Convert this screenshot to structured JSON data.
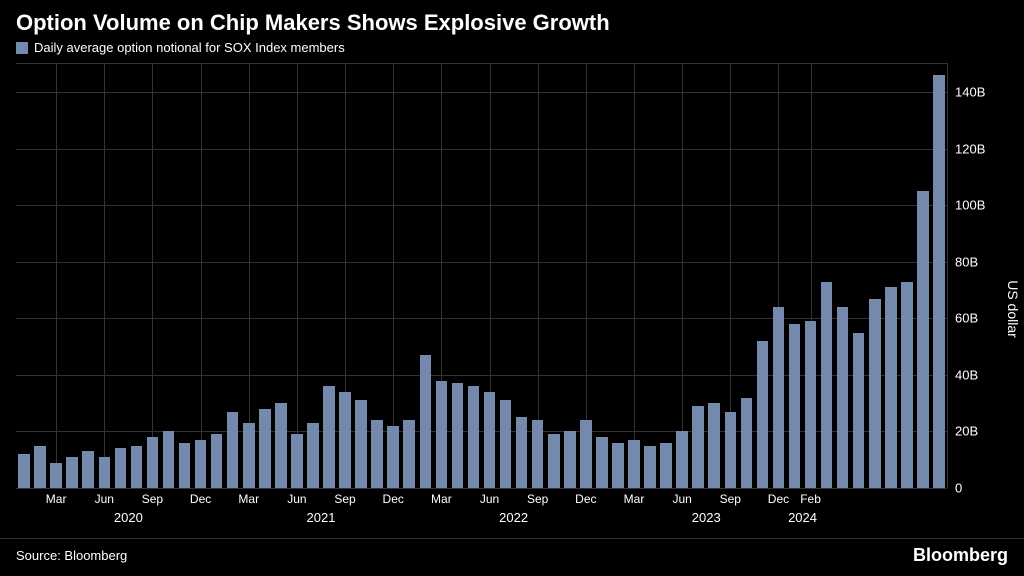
{
  "title": "Option Volume on Chip Makers Shows Explosive Growth",
  "legend": {
    "swatch_color": "#7489ab",
    "label": "Daily average option notional for SOX Index members"
  },
  "chart": {
    "type": "bar",
    "background_color": "#000000",
    "grid_color": "#333333",
    "bar_color": "#7489ab",
    "bar_width_ratio": 0.72,
    "y_axis": {
      "title": "US dollar",
      "min": 0,
      "max": 150,
      "ticks": [
        0,
        20,
        40,
        60,
        80,
        100,
        120,
        140
      ],
      "tick_labels": [
        "0",
        "20B",
        "40B",
        "60B",
        "80B",
        "100B",
        "120B",
        "140B"
      ],
      "label_color": "#ffffff",
      "label_fontsize": 13
    },
    "x_axis": {
      "month_ticks": [
        {
          "index": 2,
          "label": "Mar"
        },
        {
          "index": 5,
          "label": "Jun"
        },
        {
          "index": 8,
          "label": "Sep"
        },
        {
          "index": 11,
          "label": "Dec"
        },
        {
          "index": 14,
          "label": "Mar"
        },
        {
          "index": 17,
          "label": "Jun"
        },
        {
          "index": 20,
          "label": "Sep"
        },
        {
          "index": 23,
          "label": "Dec"
        },
        {
          "index": 26,
          "label": "Mar"
        },
        {
          "index": 29,
          "label": "Jun"
        },
        {
          "index": 32,
          "label": "Sep"
        },
        {
          "index": 35,
          "label": "Dec"
        },
        {
          "index": 38,
          "label": "Mar"
        },
        {
          "index": 41,
          "label": "Jun"
        },
        {
          "index": 44,
          "label": "Sep"
        },
        {
          "index": 47,
          "label": "Dec"
        },
        {
          "index": 49,
          "label": "Feb"
        }
      ],
      "year_ticks": [
        {
          "index": 6.5,
          "label": "2020"
        },
        {
          "index": 18.5,
          "label": "2021"
        },
        {
          "index": 30.5,
          "label": "2022"
        },
        {
          "index": 42.5,
          "label": "2023"
        },
        {
          "index": 48.5,
          "label": "2024"
        }
      ],
      "label_color": "#ffffff",
      "label_fontsize": 12
    },
    "values": [
      12,
      15,
      9,
      11,
      13,
      11,
      14,
      15,
      18,
      20,
      16,
      17,
      19,
      27,
      23,
      28,
      30,
      19,
      23,
      36,
      34,
      31,
      24,
      22,
      24,
      47,
      38,
      37,
      36,
      34,
      31,
      25,
      24,
      19,
      20,
      24,
      18,
      16,
      17,
      15,
      16,
      20,
      29,
      30,
      27,
      32,
      52,
      64,
      58,
      59,
      73,
      64,
      55,
      67,
      71,
      73,
      105,
      146
    ]
  },
  "footer": {
    "source": "Source: Bloomberg",
    "brand": "Bloomberg"
  }
}
